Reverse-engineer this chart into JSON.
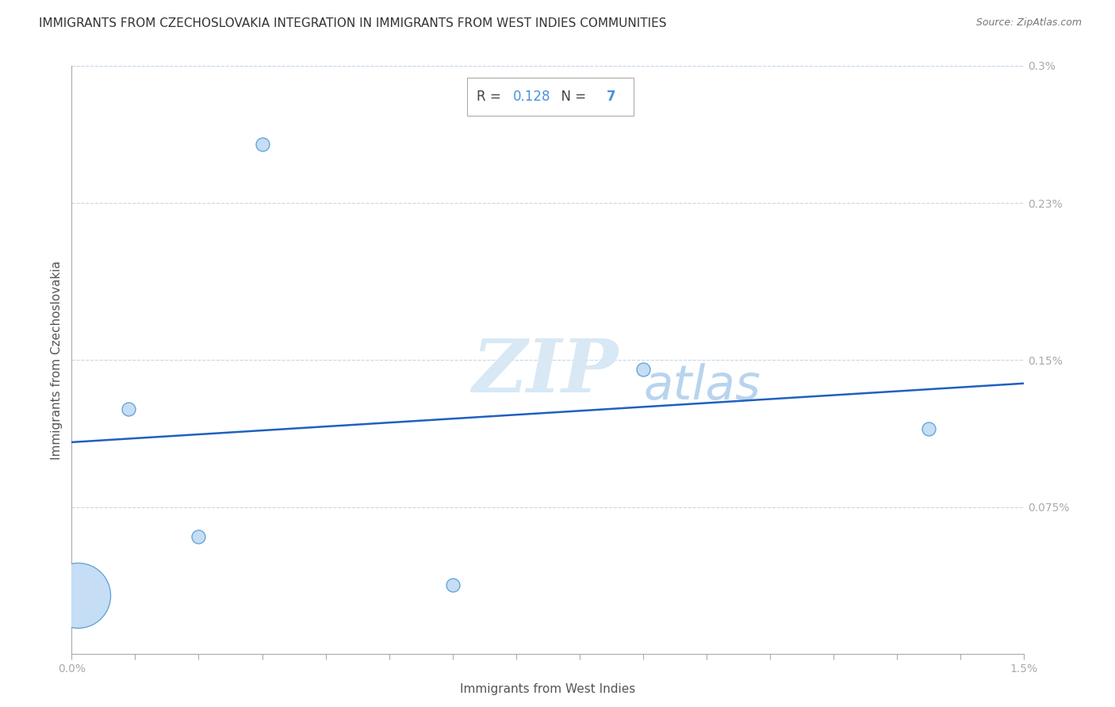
{
  "title": "IMMIGRANTS FROM CZECHOSLOVAKIA INTEGRATION IN IMMIGRANTS FROM WEST INDIES COMMUNITIES",
  "source": "Source: ZipAtlas.com",
  "xlabel": "Immigrants from West Indies",
  "ylabel": "Immigrants from Czechoslovakia",
  "x_min": 0.0,
  "x_max": 0.015,
  "y_min": 0.0,
  "y_max": 0.003,
  "R_value": "0.128",
  "N_value": "7",
  "scatter_x": [
    0.003,
    0.0001,
    0.002,
    0.006,
    0.0009,
    0.009,
    0.0135
  ],
  "scatter_y": [
    0.0026,
    0.0003,
    0.0006,
    0.00035,
    0.00125,
    0.00145,
    0.00115
  ],
  "scatter_sizes": [
    30,
    700,
    30,
    30,
    30,
    30,
    30
  ],
  "scatter_color": "#c5ddf5",
  "scatter_edge_color": "#5a9fd4",
  "regression_color": "#2060c0",
  "regression_x0": 0.0,
  "regression_y0": 0.00108,
  "regression_x1": 0.015,
  "regression_y1": 0.00138,
  "ytick_values": [
    0.003,
    0.0023,
    0.0015,
    0.00075,
    0.0
  ],
  "ytick_labels": [
    "0.3%",
    "0.23%",
    "0.15%",
    "0.075%",
    ""
  ],
  "xtick_values": [
    0.0,
    0.001,
    0.002,
    0.003,
    0.004,
    0.005,
    0.006,
    0.007,
    0.008,
    0.009,
    0.01,
    0.011,
    0.012,
    0.013,
    0.014,
    0.015
  ],
  "xtick_labels": [
    "0.0%",
    "",
    "",
    "",
    "",
    "",
    "",
    "",
    "",
    "",
    "",
    "",
    "",
    "",
    "",
    "1.5%"
  ],
  "title_fontsize": 11,
  "axis_label_fontsize": 11,
  "tick_fontsize": 10,
  "watermark_zip": "ZIP",
  "watermark_atlas": "atlas",
  "watermark_color_zip": "#d8e8f5",
  "watermark_color_atlas": "#b8d4ee",
  "background_color": "#ffffff",
  "grid_color": "#c8d8e8",
  "box_edge_color": "#aaaaaa",
  "r_label_color": "#444444",
  "r_value_color": "#4a90d9",
  "ytick_color": "#4a90d9",
  "xtick_color": "#4a90d9",
  "source_color": "#777777",
  "axis_tick_color": "#aaaaaa"
}
